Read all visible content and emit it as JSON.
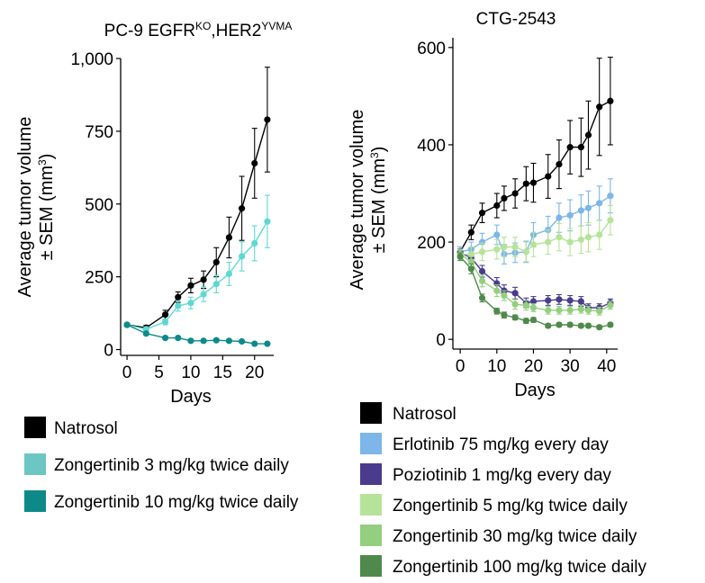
{
  "chart_data": [
    {
      "type": "line",
      "title": "PC-9 EGFR",
      "title_sup1": "KO",
      "title_mid": ",HER2",
      "title_sup2": "YVMA",
      "xlabel": "Days",
      "ylabel_line1": "Average tumor volume",
      "ylabel_line2": "± SEM (mm",
      "ylabel_sup": "3",
      "ylabel_close": ")",
      "xlim": [
        -1,
        23
      ],
      "ylim": [
        -20,
        1000
      ],
      "xticks": [
        0,
        5,
        10,
        15,
        20
      ],
      "yticks": [
        0,
        250,
        500,
        750,
        1000
      ],
      "ytick_labels": [
        "0",
        "250",
        "500",
        "750",
        "1,000"
      ],
      "series": [
        {
          "name": "Natrosol",
          "color": "#000000",
          "x": [
            0,
            3,
            6,
            8,
            10,
            12,
            14,
            16,
            18,
            20,
            22
          ],
          "y": [
            85,
            75,
            120,
            180,
            220,
            240,
            300,
            385,
            485,
            640,
            790
          ],
          "err": [
            5,
            8,
            15,
            18,
            25,
            30,
            50,
            70,
            110,
            120,
            180
          ]
        },
        {
          "name": "Zongertinib 3 mg/kg twice daily",
          "color": "#5fd8d2",
          "x": [
            0,
            3,
            6,
            8,
            10,
            12,
            14,
            16,
            18,
            20,
            22
          ],
          "y": [
            85,
            70,
            95,
            150,
            160,
            190,
            225,
            260,
            320,
            365,
            440
          ],
          "err": [
            5,
            8,
            10,
            18,
            20,
            25,
            30,
            40,
            50,
            60,
            90
          ]
        },
        {
          "name": "Zongertinib 10 mg/kg twice daily",
          "color": "#0d8a88",
          "x": [
            0,
            3,
            6,
            8,
            10,
            12,
            14,
            16,
            18,
            20,
            22
          ],
          "y": [
            85,
            55,
            40,
            40,
            30,
            30,
            32,
            30,
            28,
            20,
            20
          ],
          "err": [
            5,
            5,
            4,
            4,
            4,
            4,
            4,
            4,
            4,
            3,
            3
          ]
        }
      ],
      "legend_position": "bottom"
    },
    {
      "type": "line",
      "title": "CTG-2543",
      "xlabel": "Days",
      "ylabel_line1": "Average tumor volume",
      "ylabel_line2": "± SEM (mm",
      "ylabel_sup": "3",
      "ylabel_close": ")",
      "xlim": [
        -2,
        43
      ],
      "ylim": [
        -20,
        620
      ],
      "xticks": [
        0,
        10,
        20,
        30,
        40
      ],
      "yticks": [
        0,
        200,
        400,
        600
      ],
      "ytick_labels": [
        "0",
        "200",
        "400",
        "600"
      ],
      "series": [
        {
          "name": "Natrosol",
          "color": "#000000",
          "x": [
            0,
            3,
            6,
            10,
            12,
            15,
            18,
            20,
            24,
            27,
            30,
            33,
            35,
            38,
            41
          ],
          "y": [
            180,
            220,
            260,
            275,
            290,
            300,
            320,
            322,
            335,
            360,
            395,
            395,
            420,
            478,
            490
          ],
          "err": [
            10,
            15,
            20,
            25,
            25,
            30,
            35,
            40,
            45,
            50,
            55,
            60,
            70,
            100,
            90
          ]
        },
        {
          "name": "Erlotinib 75 mg/kg every day",
          "color": "#7db6e8",
          "x": [
            0,
            3,
            6,
            10,
            12,
            15,
            18,
            20,
            24,
            27,
            30,
            33,
            35,
            38,
            41
          ],
          "y": [
            180,
            185,
            200,
            215,
            175,
            178,
            180,
            215,
            225,
            250,
            255,
            265,
            270,
            280,
            295
          ],
          "err": [
            10,
            15,
            18,
            20,
            20,
            20,
            22,
            25,
            28,
            30,
            32,
            32,
            35,
            35,
            35
          ]
        },
        {
          "name": "Poziotinib 1 mg/kg every day",
          "color": "#4a3b8c",
          "x": [
            0,
            3,
            6,
            10,
            12,
            15,
            18,
            20,
            24,
            27,
            30,
            33,
            35,
            38,
            41
          ],
          "y": [
            178,
            168,
            140,
            115,
            100,
            95,
            75,
            78,
            80,
            82,
            80,
            78,
            65,
            65,
            75
          ],
          "err": [
            8,
            10,
            12,
            12,
            12,
            12,
            10,
            10,
            10,
            10,
            10,
            10,
            8,
            8,
            8
          ]
        },
        {
          "name": "Zongertinib 5 mg/kg twice daily",
          "color": "#b6e39a",
          "x": [
            0,
            3,
            6,
            10,
            12,
            15,
            18,
            20,
            24,
            27,
            30,
            33,
            35,
            38,
            41
          ],
          "y": [
            175,
            175,
            180,
            185,
            190,
            190,
            180,
            195,
            200,
            210,
            200,
            205,
            210,
            215,
            245
          ],
          "err": [
            10,
            15,
            18,
            20,
            20,
            20,
            20,
            25,
            25,
            28,
            28,
            28,
            30,
            30,
            30
          ]
        },
        {
          "name": "Zongertinib 30 mg/kg twice daily",
          "color": "#93cf7e",
          "x": [
            0,
            3,
            6,
            10,
            12,
            15,
            18,
            20,
            24,
            27,
            30,
            33,
            35,
            38,
            41
          ],
          "y": [
            175,
            160,
            120,
            100,
            90,
            72,
            70,
            65,
            60,
            60,
            60,
            62,
            60,
            58,
            70
          ],
          "err": [
            8,
            10,
            12,
            12,
            10,
            10,
            10,
            8,
            8,
            8,
            8,
            8,
            8,
            8,
            8
          ]
        },
        {
          "name": "Zongertinib 100 mg/kg twice daily",
          "color": "#4f8a4c",
          "x": [
            0,
            3,
            6,
            10,
            12,
            15,
            18,
            20,
            24,
            27,
            30,
            33,
            35,
            38,
            41
          ],
          "y": [
            170,
            145,
            85,
            58,
            50,
            45,
            38,
            40,
            28,
            30,
            30,
            28,
            28,
            25,
            30
          ],
          "err": [
            8,
            10,
            8,
            6,
            6,
            5,
            5,
            5,
            4,
            4,
            4,
            4,
            4,
            4,
            4
          ]
        }
      ],
      "legend_position": "bottom"
    }
  ]
}
